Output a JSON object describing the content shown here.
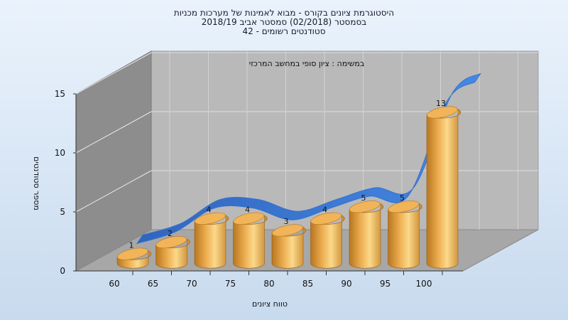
{
  "chart_data": {
    "type": "bar",
    "title_lines": [
      "היסטוגרמת ציונים בקורס - מבוא לאמינות של מערכות מכניות",
      "בסמסטר  (02/2018)  סמסטר אביב 2018/19",
      "סטודנטים רשומים - 42"
    ],
    "annotation": "במשימה : ציון סופי במחשב המרכזי",
    "xlabel": "טווח ציונים",
    "ylabel": "מספר סטודנטים",
    "categories": [
      "60",
      "65",
      "70",
      "75",
      "80",
      "85",
      "90",
      "95",
      "100"
    ],
    "values": [
      1,
      2,
      4,
      4,
      3,
      4,
      5,
      5,
      13
    ],
    "trend_overlay": "smooth-curve",
    "y_ticks": [
      0,
      5,
      10,
      15
    ],
    "ylim": [
      0,
      15
    ],
    "grid": true,
    "colors": {
      "bar_light": "#fbd98a",
      "bar_mid": "#eeaf52",
      "bar_dark": "#b8761f",
      "bar_top": "#f2b458",
      "curve": "#2f6fd0",
      "back_wall": "#b9b9b9",
      "side_wall": "#8c8c8c",
      "floor": "#a6a6a6"
    }
  }
}
